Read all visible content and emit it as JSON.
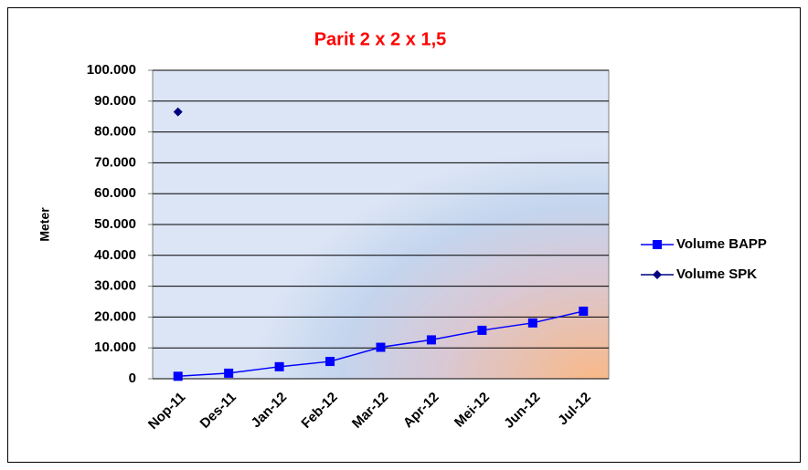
{
  "chart_data": {
    "type": "line",
    "title": "Parit 2 x 2 x 1,5",
    "y_label": "Meter",
    "categories": [
      "Nop-11",
      "Des-11",
      "Jan-12",
      "Feb-12",
      "Mar-12",
      "Apr-12",
      "Mei-12",
      "Jun-12",
      "Jul-12"
    ],
    "series": [
      {
        "name": "Volume BAPP",
        "color": "#0000ff",
        "marker": "square",
        "values": [
          800,
          1800,
          3900,
          5600,
          10200,
          12600,
          15700,
          18100,
          21900
        ]
      },
      {
        "name": "Volume SPK",
        "color": "#000080",
        "marker": "diamond",
        "values": [
          86500,
          null,
          null,
          null,
          null,
          null,
          null,
          null,
          null
        ]
      }
    ],
    "ylim": [
      0,
      100000
    ],
    "yticks": [
      0,
      {
        "value": 10000,
        "label": "10.000"
      },
      {
        "value": 20000,
        "label": "20.000"
      },
      {
        "value": 30000,
        "label": "30.000"
      },
      {
        "value": 40000,
        "label": "40.000"
      },
      {
        "value": 50000,
        "label": "50.000"
      },
      {
        "value": 60000,
        "label": "60.000"
      },
      {
        "value": 70000,
        "label": "70.000"
      },
      {
        "value": 80000,
        "label": "80.000"
      },
      {
        "value": 90000,
        "label": "90.000"
      },
      {
        "value": 100000,
        "label": "100.000"
      }
    ],
    "grid": true,
    "legend": "right"
  }
}
